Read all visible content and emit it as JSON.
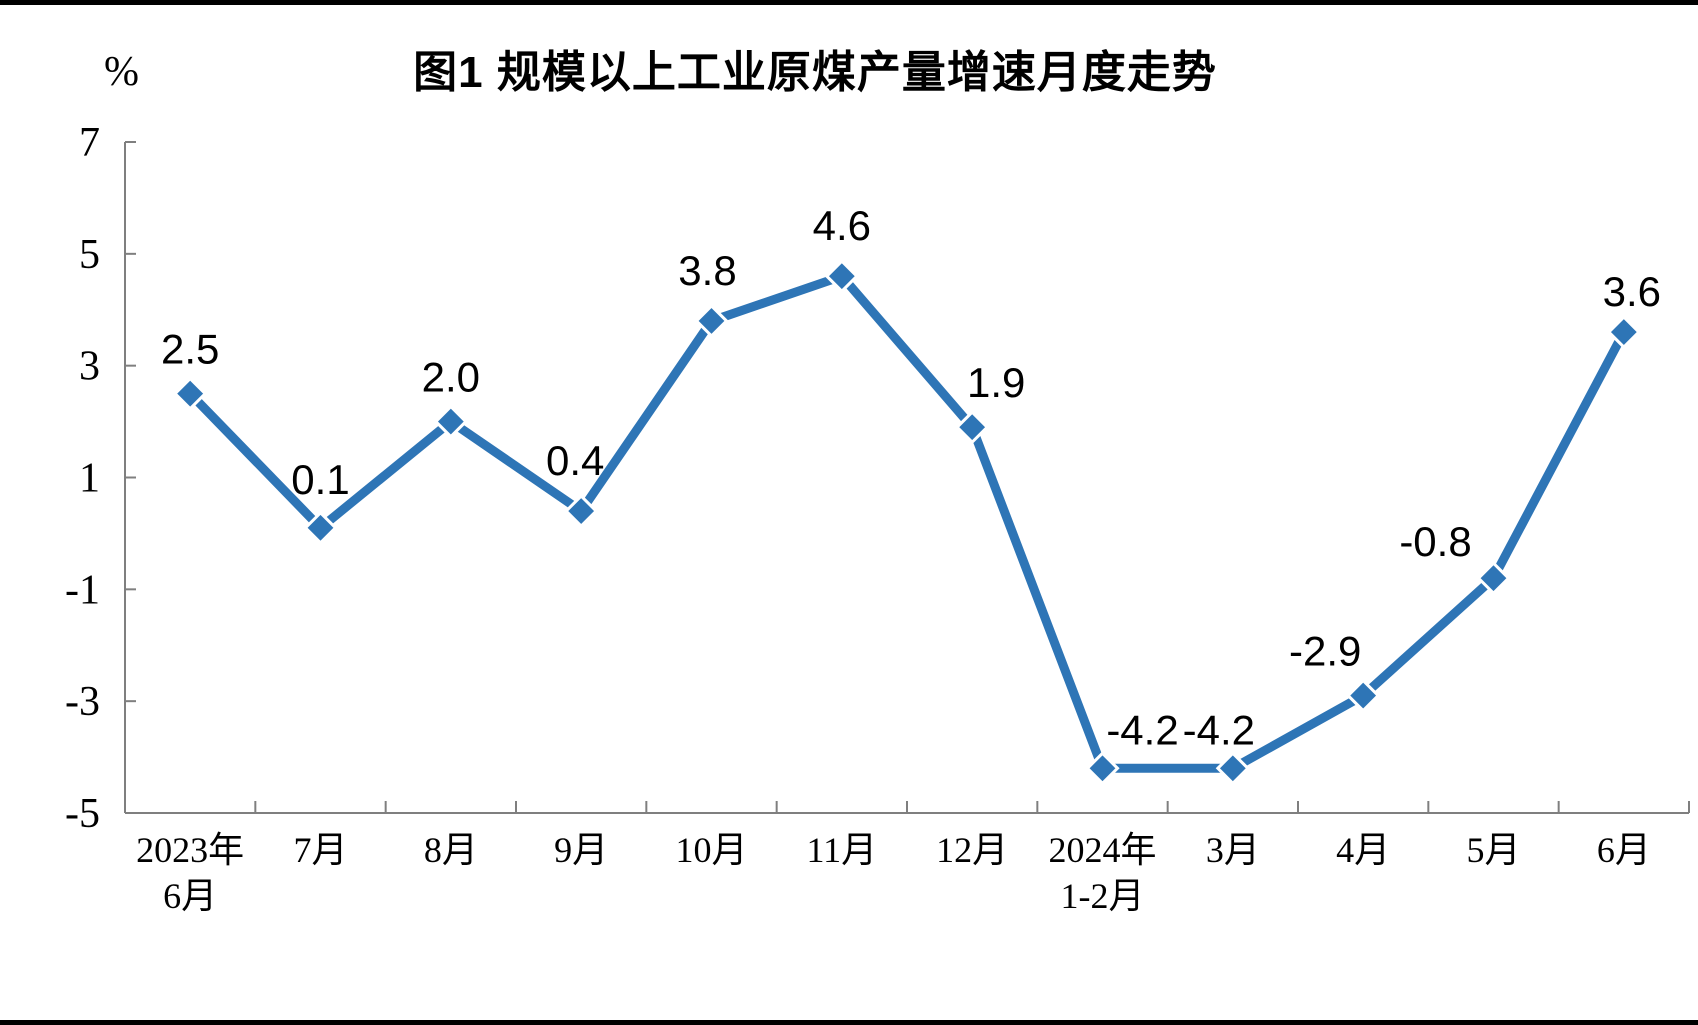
{
  "page": {
    "background_color": "#FFFFFF",
    "top_border_color": "#000000",
    "bottom_border_color": "#000000"
  },
  "chart_data": {
    "type": "line",
    "title": "图1 规模以上工业原煤产量增速月度走势",
    "unit_label": "%",
    "categories": [
      [
        "2023年",
        "6月"
      ],
      [
        "7月"
      ],
      [
        "8月"
      ],
      [
        "9月"
      ],
      [
        "10月"
      ],
      [
        "11月"
      ],
      [
        "12月"
      ],
      [
        "2024年",
        "1-2月"
      ],
      [
        "3月"
      ],
      [
        "4月"
      ],
      [
        "5月"
      ],
      [
        "6月"
      ]
    ],
    "values": [
      2.5,
      0.1,
      2.0,
      0.4,
      3.8,
      4.6,
      1.9,
      -4.2,
      -4.2,
      -2.9,
      -0.8,
      3.6
    ],
    "value_label_decimals": 1,
    "y_ticks": [
      7,
      5,
      3,
      1,
      -1,
      -3,
      -5
    ],
    "ylim": [
      -5,
      7
    ],
    "grid": false,
    "legend": "none",
    "marker_shape": "diamond",
    "colors": {
      "line": "#2E75B6",
      "marker": "#2E75B6",
      "marker_outline": "#FFFFFF",
      "axis": "#7F7F7F",
      "text": "#000000"
    }
  }
}
